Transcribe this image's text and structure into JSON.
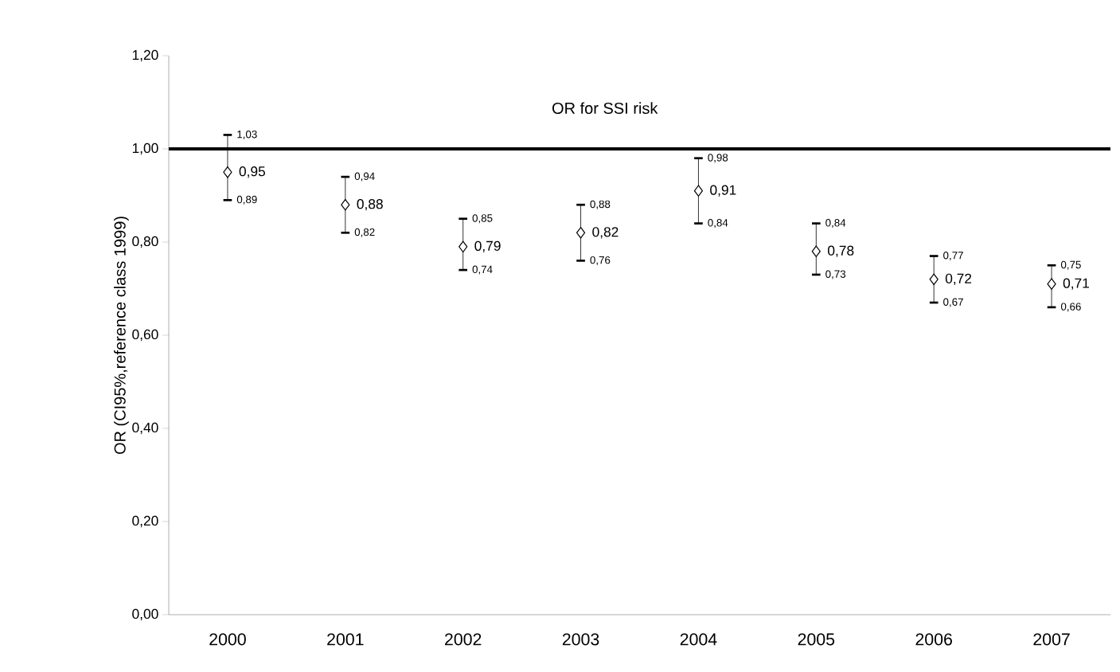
{
  "chart_data": {
    "type": "scatter",
    "title": "OR for SSI risk",
    "ylabel": "OR (CI95%,reference class 1999)",
    "categories": [
      "2000",
      "2001",
      "2002",
      "2003",
      "2004",
      "2005",
      "2006",
      "2007"
    ],
    "values": [
      0.95,
      0.88,
      0.79,
      0.82,
      0.91,
      0.78,
      0.72,
      0.71
    ],
    "errors": [
      [
        0.89,
        1.03
      ],
      [
        0.82,
        0.94
      ],
      [
        0.74,
        0.85
      ],
      [
        0.76,
        0.88
      ],
      [
        0.84,
        0.98
      ],
      [
        0.73,
        0.84
      ],
      [
        0.67,
        0.77
      ],
      [
        0.66,
        0.75
      ]
    ],
    "value_labels": [
      "0,95",
      "0,88",
      "0,79",
      "0,82",
      "0,91",
      "0,78",
      "0,72",
      "0,71"
    ],
    "color": "#000000",
    "marker": "diamond",
    "grid": false,
    "ylim": [
      0,
      1.2
    ],
    "yticks": [
      {
        "value": 0,
        "label": "0,00"
      },
      {
        "value": 0.2,
        "label": "0,20"
      },
      {
        "value": 0.4,
        "label": "0,40"
      },
      {
        "value": 0.6,
        "label": "0,60"
      },
      {
        "value": 0.8,
        "label": "0,80"
      },
      {
        "value": 1.0,
        "label": "1,00"
      },
      {
        "value": 1.2,
        "label": "1,20"
      }
    ],
    "ref_lines": [
      {
        "axis": "y",
        "value": 1.0,
        "color": "#000000"
      }
    ],
    "annotations": [
      {
        "text": "1,03",
        "x": "2000",
        "y": 1.03
      },
      {
        "text": "0,89",
        "x": "2000",
        "y": 0.89
      },
      {
        "text": "0,94",
        "x": "2001",
        "y": 0.94
      },
      {
        "text": "0,82",
        "x": "2001",
        "y": 0.82
      },
      {
        "text": "0,85",
        "x": "2002",
        "y": 0.85
      },
      {
        "text": "0,74",
        "x": "2002",
        "y": 0.74
      },
      {
        "text": "0,88",
        "x": "2003",
        "y": 0.88
      },
      {
        "text": "0,76",
        "x": "2003",
        "y": 0.76
      },
      {
        "text": "0,98",
        "x": "2004",
        "y": 0.98
      },
      {
        "text": "0,84",
        "x": "2004",
        "y": 0.84
      },
      {
        "text": "0,84",
        "x": "2005",
        "y": 0.84
      },
      {
        "text": "0,73",
        "x": "2005",
        "y": 0.73
      },
      {
        "text": "0,77",
        "x": "2006",
        "y": 0.77
      },
      {
        "text": "0,67",
        "x": "2006",
        "y": 0.67
      },
      {
        "text": "0,75",
        "x": "2007",
        "y": 0.75
      },
      {
        "text": "0,66",
        "x": "2007",
        "y": 0.66
      }
    ]
  }
}
